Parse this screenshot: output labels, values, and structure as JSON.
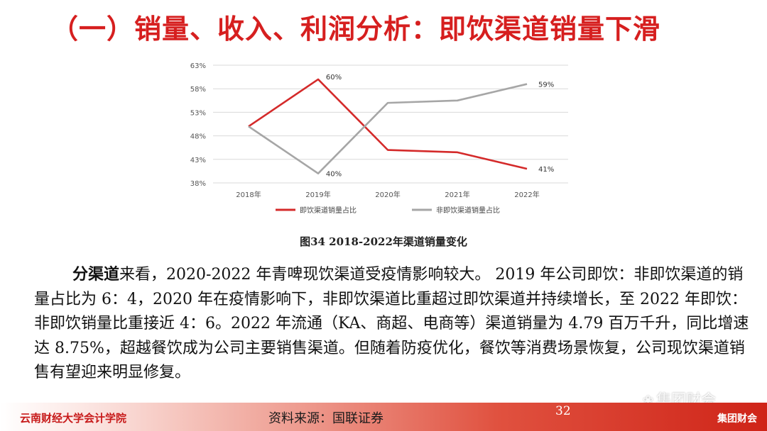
{
  "slide": {
    "title": "（一）销量、收入、利润分析：即饮渠道销量下滑",
    "caption": "图34  2018-2022年渠道销量变化",
    "paragraph": {
      "lead": "分渠道",
      "text": "来看，2020-2022 年青啤现饮渠道受疫情影响较大。 2019 年公司即饮：非即饮渠道的销量占比为 6：4，2020 年在疫情影响下，非即饮渠道比重超过即饮渠道并持续增长，至 2022 年即饮：非即饮销量比重接近 4：6。2022 年流通（KA、商超、电商等）渠道销量为 4.79 百万千升，同比增速达 8.75%，超越餐饮成为公司主要销售渠道。但随着防疫优化，餐饮等消费场景恢复，公司现饮渠道销售有望迎来明显修复。"
    }
  },
  "footer": {
    "institution": "云南财经大学会计学院",
    "source": "资料来源：国联证券",
    "page": "32",
    "brand": "集团财会",
    "watermark": "集团财会"
  },
  "colors": {
    "accent": "#d61f1f",
    "series_red": "#d42a2a",
    "series_gray": "#a6a6a6"
  },
  "chart_data": {
    "type": "line",
    "categories": [
      "2018年",
      "2019年",
      "2020年",
      "2021年",
      "2022年"
    ],
    "series": [
      {
        "name": "即饮渠道销量占比",
        "values": [
          50,
          60,
          45,
          44.5,
          41
        ],
        "color": "#d42a2a",
        "labels": {
          "1": "60%",
          "4": "41%"
        }
      },
      {
        "name": "非即饮渠道销量占比",
        "values": [
          50,
          40,
          55,
          55.5,
          59
        ],
        "color": "#a6a6a6",
        "labels": {
          "1": "40%",
          "4": "59%"
        }
      }
    ],
    "yticks": [
      "38%",
      "43%",
      "48%",
      "53%",
      "58%",
      "63%"
    ],
    "ytick_values": [
      38,
      43,
      48,
      53,
      58,
      63
    ],
    "ylim": [
      38,
      63
    ],
    "grid": true,
    "legend": "bottom"
  }
}
